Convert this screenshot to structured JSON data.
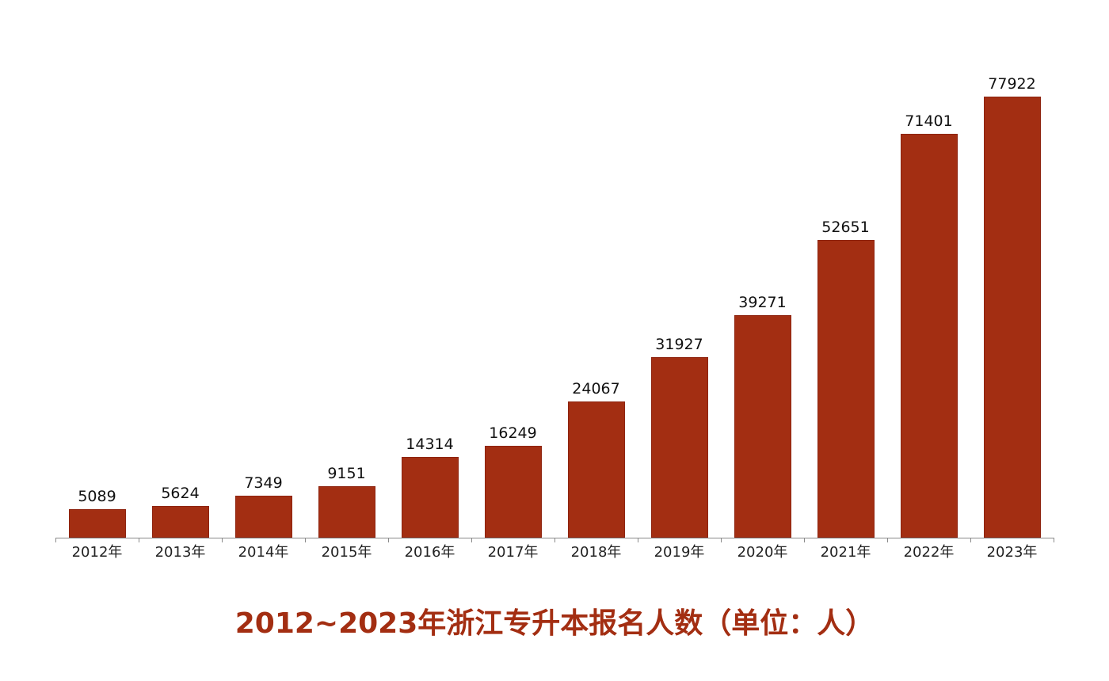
{
  "chart_data": {
    "type": "bar",
    "title": "2012~2023年浙江专升本报名人数（单位：人）",
    "xlabel": "",
    "ylabel": "",
    "categories": [
      "2012年",
      "2013年",
      "2014年",
      "2015年",
      "2016年",
      "2017年",
      "2018年",
      "2019年",
      "2020年",
      "2021年",
      "2022年",
      "2023年"
    ],
    "values": [
      5089,
      5624,
      7349,
      9151,
      14314,
      16249,
      24067,
      31927,
      39271,
      52651,
      71401,
      77922
    ],
    "ylim": [
      0,
      80000
    ],
    "grid": false,
    "data_labels": true,
    "legend": null,
    "bar_color": "#A32E12",
    "title_color": "#A32E12"
  }
}
